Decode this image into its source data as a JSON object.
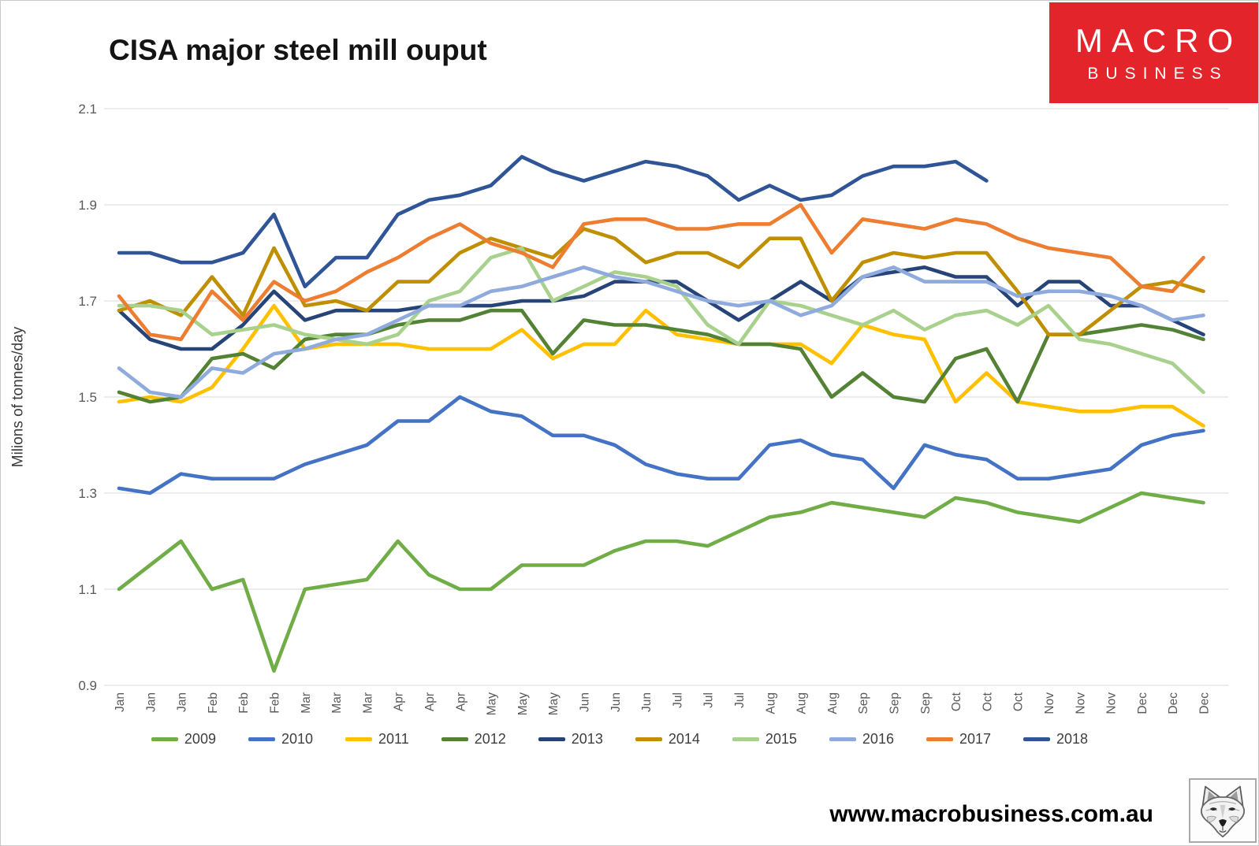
{
  "header": {
    "title": "CISA major steel mill ouput"
  },
  "logo": {
    "line1": "MACRO",
    "line2": "BUSINESS",
    "background": "#E3242B",
    "text_color": "#FFFFFF"
  },
  "footer": {
    "url": "www.macrobusiness.com.au",
    "fox_icon": "fox-sketch-logo"
  },
  "chart_data": {
    "type": "line",
    "title": "CISA major steel mill ouput",
    "xlabel": "",
    "ylabel": "Milions of tonnes/day",
    "ylim": [
      0.9,
      2.1
    ],
    "ytick_labels": [
      "2.1",
      "1.9",
      "1.7",
      "1.5",
      "1.3",
      "1.1",
      "0.9"
    ],
    "grid": "horizontal",
    "gridline_color": "#D9D9D9",
    "legend_position": "bottom",
    "readings_per_month": 3,
    "x_labels": [
      "Jan",
      "Jan",
      "Jan",
      "Feb",
      "Feb",
      "Feb",
      "Mar",
      "Mar",
      "Mar",
      "Apr",
      "Apr",
      "Apr",
      "May",
      "May",
      "May",
      "Jun",
      "Jun",
      "Jun",
      "Jul",
      "Jul",
      "Jul",
      "Aug",
      "Aug",
      "Aug",
      "Sep",
      "Sep",
      "Sep",
      "Oct",
      "Oct",
      "Oct",
      "Nov",
      "Nov",
      "Nov",
      "Dec",
      "Dec",
      "Dec"
    ],
    "series": [
      {
        "name": "2009",
        "color": "#70AD47",
        "values": [
          1.1,
          1.15,
          1.2,
          1.1,
          1.12,
          0.93,
          1.1,
          1.11,
          1.12,
          1.2,
          1.13,
          1.1,
          1.1,
          1.15,
          1.15,
          1.15,
          1.18,
          1.2,
          1.2,
          1.19,
          1.22,
          1.25,
          1.26,
          1.28,
          1.27,
          1.26,
          1.25,
          1.29,
          1.28,
          1.26,
          1.25,
          1.24,
          1.27,
          1.3,
          1.29,
          1.28
        ]
      },
      {
        "name": "2010",
        "color": "#4472C4",
        "values": [
          1.31,
          1.3,
          1.34,
          1.33,
          1.33,
          1.33,
          1.36,
          1.38,
          1.4,
          1.45,
          1.45,
          1.5,
          1.47,
          1.46,
          1.42,
          1.42,
          1.4,
          1.36,
          1.34,
          1.33,
          1.33,
          1.4,
          1.41,
          1.38,
          1.37,
          1.31,
          1.4,
          1.38,
          1.37,
          1.33,
          1.33,
          1.34,
          1.35,
          1.4,
          1.42,
          1.43
        ]
      },
      {
        "name": "2011",
        "color": "#FFC000",
        "values": [
          1.49,
          1.5,
          1.49,
          1.52,
          1.6,
          1.69,
          1.6,
          1.61,
          1.61,
          1.61,
          1.6,
          1.6,
          1.6,
          1.64,
          1.58,
          1.61,
          1.61,
          1.68,
          1.63,
          1.62,
          1.61,
          1.61,
          1.61,
          1.57,
          1.65,
          1.63,
          1.62,
          1.49,
          1.55,
          1.49,
          1.48,
          1.47,
          1.47,
          1.48,
          1.48,
          1.44
        ]
      },
      {
        "name": "2012",
        "color": "#548235",
        "values": [
          1.51,
          1.49,
          1.5,
          1.58,
          1.59,
          1.56,
          1.62,
          1.63,
          1.63,
          1.65,
          1.66,
          1.66,
          1.68,
          1.68,
          1.59,
          1.66,
          1.65,
          1.65,
          1.64,
          1.63,
          1.61,
          1.61,
          1.6,
          1.5,
          1.55,
          1.5,
          1.49,
          1.58,
          1.6,
          1.49,
          1.63,
          1.63,
          1.64,
          1.65,
          1.64,
          1.62
        ]
      },
      {
        "name": "2013",
        "color": "#264478",
        "values": [
          1.68,
          1.62,
          1.6,
          1.6,
          1.65,
          1.72,
          1.66,
          1.68,
          1.68,
          1.68,
          1.69,
          1.69,
          1.69,
          1.7,
          1.7,
          1.71,
          1.74,
          1.74,
          1.74,
          1.7,
          1.66,
          1.7,
          1.74,
          1.7,
          1.75,
          1.76,
          1.77,
          1.75,
          1.75,
          1.69,
          1.74,
          1.74,
          1.69,
          1.69,
          1.66,
          1.63
        ]
      },
      {
        "name": "2014",
        "color": "#BF8F00",
        "values": [
          1.68,
          1.7,
          1.67,
          1.75,
          1.67,
          1.81,
          1.69,
          1.7,
          1.68,
          1.74,
          1.74,
          1.8,
          1.83,
          1.81,
          1.79,
          1.85,
          1.83,
          1.78,
          1.8,
          1.8,
          1.77,
          1.83,
          1.83,
          1.7,
          1.78,
          1.8,
          1.79,
          1.8,
          1.8,
          1.72,
          1.63,
          1.63,
          1.68,
          1.73,
          1.74,
          1.72
        ]
      },
      {
        "name": "2015",
        "color": "#A9D18E",
        "values": [
          1.69,
          1.69,
          1.68,
          1.63,
          1.64,
          1.65,
          1.63,
          1.62,
          1.61,
          1.63,
          1.7,
          1.72,
          1.79,
          1.81,
          1.7,
          1.73,
          1.76,
          1.75,
          1.73,
          1.65,
          1.61,
          1.7,
          1.69,
          1.67,
          1.65,
          1.68,
          1.64,
          1.67,
          1.68,
          1.65,
          1.69,
          1.62,
          1.61,
          1.59,
          1.57,
          1.51
        ]
      },
      {
        "name": "2016",
        "color": "#8FAADC",
        "values": [
          1.56,
          1.51,
          1.5,
          1.56,
          1.55,
          1.59,
          1.6,
          1.62,
          1.63,
          1.66,
          1.69,
          1.69,
          1.72,
          1.73,
          1.75,
          1.77,
          1.75,
          1.74,
          1.72,
          1.7,
          1.69,
          1.7,
          1.67,
          1.69,
          1.75,
          1.77,
          1.74,
          1.74,
          1.74,
          1.71,
          1.72,
          1.72,
          1.71,
          1.69,
          1.66,
          1.67
        ]
      },
      {
        "name": "2017",
        "color": "#ED7D31",
        "values": [
          1.71,
          1.63,
          1.62,
          1.72,
          1.66,
          1.74,
          1.7,
          1.72,
          1.76,
          1.79,
          1.83,
          1.86,
          1.82,
          1.8,
          1.77,
          1.86,
          1.87,
          1.87,
          1.85,
          1.85,
          1.86,
          1.86,
          1.9,
          1.8,
          1.87,
          1.86,
          1.85,
          1.87,
          1.86,
          1.83,
          1.81,
          1.8,
          1.79,
          1.73,
          1.72,
          1.79
        ]
      },
      {
        "name": "2018",
        "color": "#2F5597",
        "values": [
          1.8,
          1.8,
          1.78,
          1.78,
          1.8,
          1.88,
          1.73,
          1.79,
          1.79,
          1.88,
          1.91,
          1.92,
          1.94,
          2.0,
          1.97,
          1.95,
          1.97,
          1.99,
          1.98,
          1.96,
          1.91,
          1.94,
          1.91,
          1.92,
          1.96,
          1.98,
          1.98,
          1.99,
          1.95
        ]
      }
    ]
  }
}
